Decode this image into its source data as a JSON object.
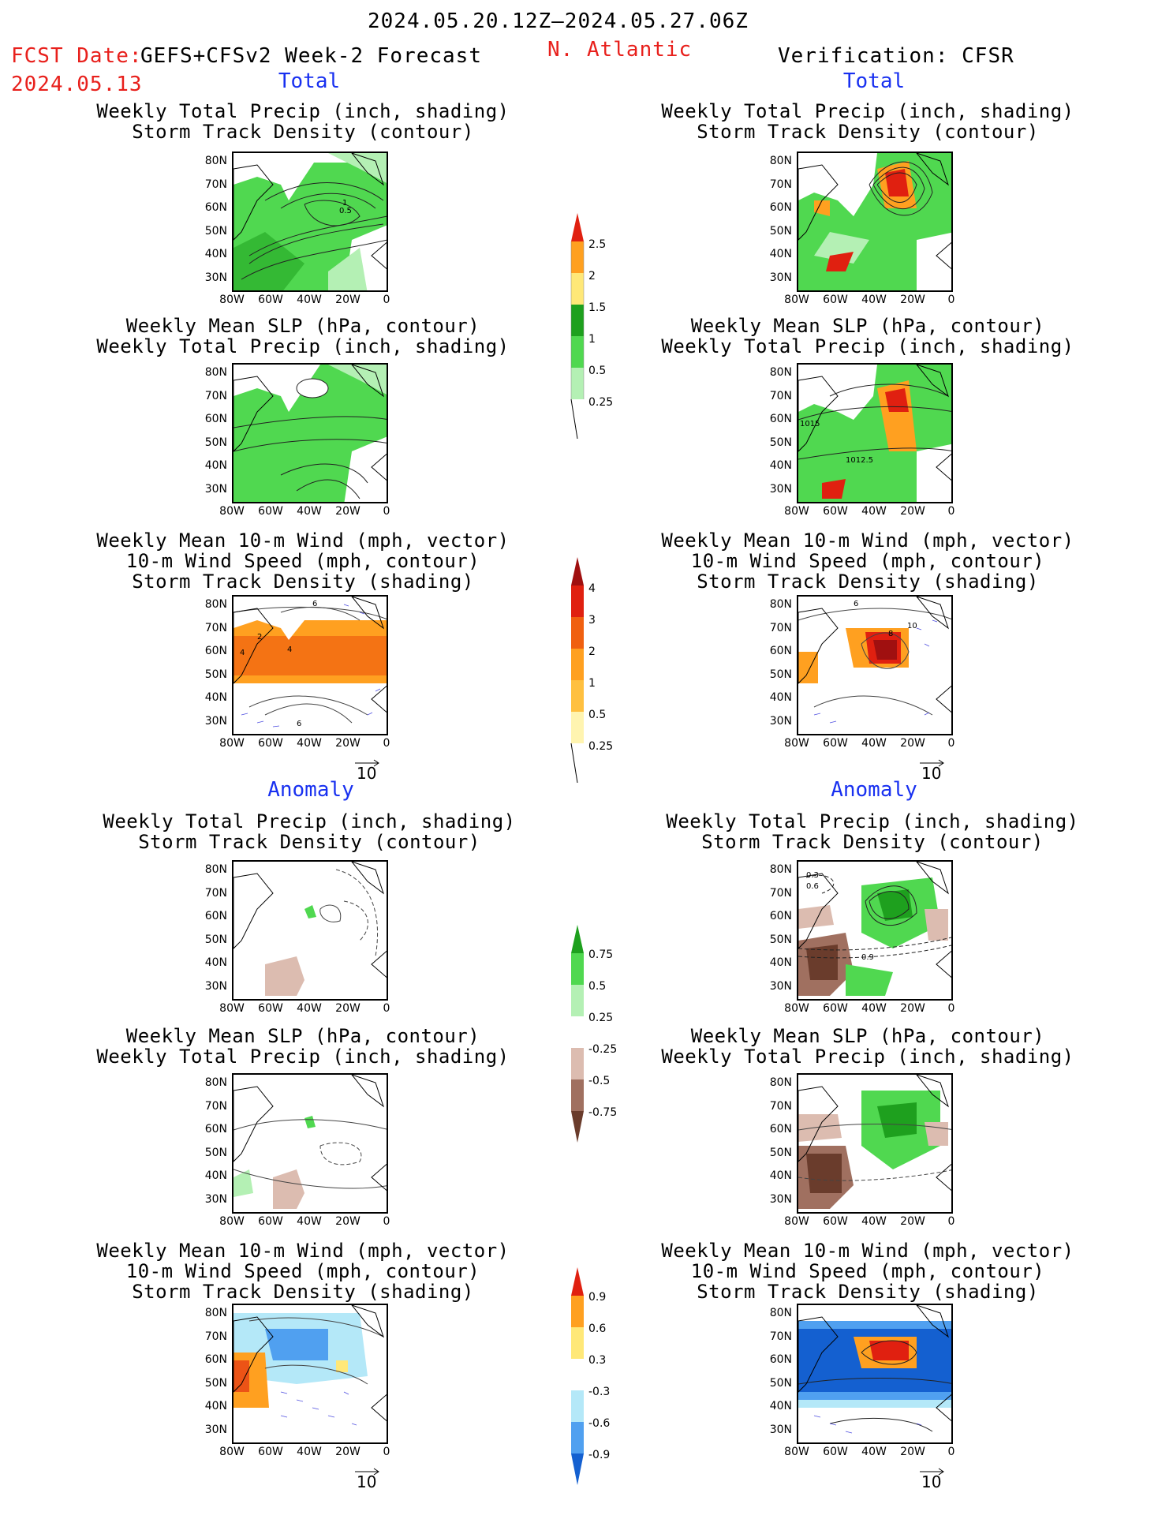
{
  "header": {
    "date_range": "2024.05.20.12Z–2024.05.27.06Z",
    "fcst_label": "FCST Date:",
    "fcst_date": "2024.05.13",
    "model": "GEFS+CFSv2 Week-2 Forecast",
    "region": "N. Atlantic",
    "verification": "Verification: CFSR"
  },
  "sections": {
    "total": "Total",
    "anomaly": "Anomaly"
  },
  "titles": {
    "precip_storm": [
      "Weekly Total Precip (inch, shading)",
      "Storm Track Density (contour)"
    ],
    "slp_precip": [
      "Weekly Mean SLP (hPa, contour)",
      "Weekly Total Precip (inch, shading)"
    ],
    "wind_storm": [
      "Weekly Mean 10-m Wind (mph, vector)",
      "10-m Wind Speed (mph, contour)",
      "Storm Track Density (shading)"
    ]
  },
  "axes": {
    "lat": [
      "80N",
      "70N",
      "60N",
      "50N",
      "40N",
      "30N"
    ],
    "lon": [
      "80W",
      "60W",
      "40W",
      "20W",
      "0"
    ]
  },
  "colorbars": {
    "precip_total": [
      "2.5",
      "2",
      "1.5",
      "1",
      "0.5",
      "0.25"
    ],
    "storm_total": [
      "4",
      "3",
      "2",
      "1",
      "0.5",
      "0.25"
    ],
    "precip_anom": [
      "0.75",
      "0.5",
      "0.25",
      "-0.25",
      "-0.5",
      "-0.75"
    ],
    "storm_anom": [
      "0.9",
      "0.6",
      "0.3",
      "-0.3",
      "-0.6",
      "-0.9"
    ]
  },
  "contour_labels": {
    "p1_a": "1",
    "p1_b": "0.5",
    "p4_a": "1015",
    "p4_b": "1012.5",
    "p5_a": "6",
    "p5_b": "2",
    "p5_c": "4",
    "p5_d": "4",
    "p5_e": "6",
    "p6_a": "6",
    "p6_b": "10",
    "p6_c": "8",
    "p9_a": "0.3",
    "p9_b": "0.6",
    "p9_c": "0.9"
  },
  "vector_ref": "10",
  "colors": {
    "red_text": "#e8201c",
    "blue_text": "#1830f0",
    "green_light": "#b4f0b4",
    "green": "#50d850",
    "green_dark": "#1ea01e",
    "yellow": "#ffe878",
    "orange": "#ffa020",
    "red": "#e02010",
    "brown_light": "#dcbcb0",
    "brown": "#a07060",
    "brown_dark": "#6a3c2c",
    "blue_light": "#b4e8f8",
    "blue": "#50a0f0",
    "blue_dark": "#1460d0"
  }
}
